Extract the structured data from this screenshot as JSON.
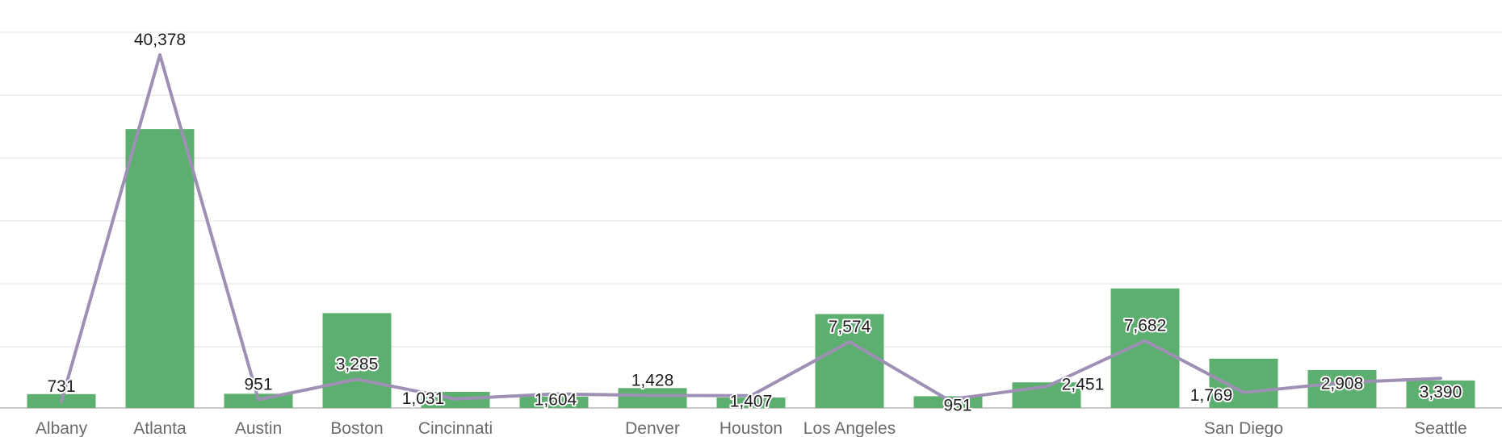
{
  "chart_data": {
    "type": "bar",
    "categories": [
      "Albany",
      "Atlanta",
      "Austin",
      "Boston",
      "Cincinnati",
      "",
      "Denver",
      "Houston",
      "Los Angeles",
      "",
      "",
      "",
      "San Diego",
      "",
      "Seattle"
    ],
    "series": [
      {
        "type": "bar",
        "values": [
          731,
          14700,
          750,
          5000,
          850,
          600,
          1050,
          550,
          4950,
          620,
          1350,
          6300,
          2600,
          2000,
          1450
        ],
        "color": "#5caf6e"
      },
      {
        "type": "line",
        "values": [
          731,
          40378,
          951,
          3285,
          1031,
          1604,
          1428,
          1407,
          7574,
          951,
          2451,
          7682,
          1769,
          2908,
          3390
        ],
        "color": "#9e90b4"
      }
    ],
    "line_labels": [
      "731",
      "40,378",
      "951",
      "3,285",
      "1,031",
      "1,604",
      "1,428",
      "1,407",
      "7,574",
      "951",
      "2,451",
      "7,682",
      "1,769",
      "2,908",
      "3,390"
    ],
    "grid": true,
    "legend": "none"
  }
}
